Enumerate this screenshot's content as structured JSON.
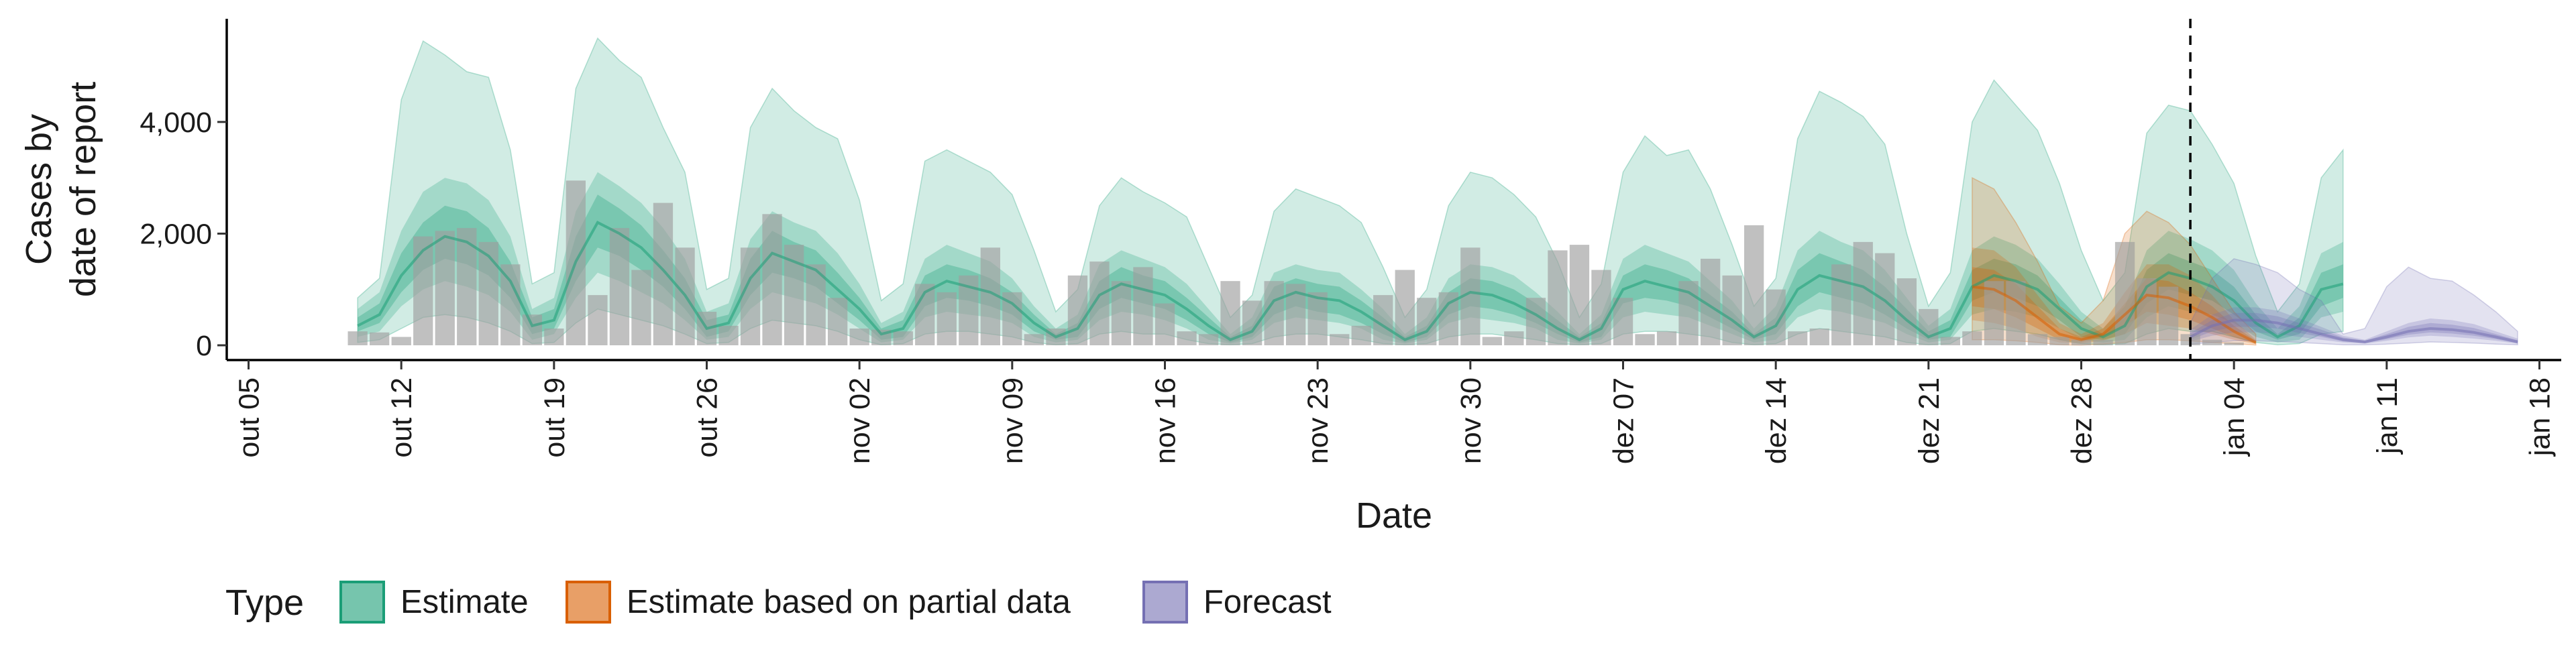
{
  "chart_data": {
    "type": "area",
    "xlabel": "Date",
    "ylabel_lines": [
      "Cases by",
      "date of report"
    ],
    "ylim": [
      0,
      5800
    ],
    "y_ticks": [
      0,
      2000,
      4000
    ],
    "y_tick_labels": [
      "0",
      "2,000",
      "4,000"
    ],
    "x_range": [
      "2020-10-04",
      "2021-01-19"
    ],
    "x_ticks": [
      "2020-10-05",
      "2020-10-12",
      "2020-10-19",
      "2020-10-26",
      "2020-11-02",
      "2020-11-09",
      "2020-11-16",
      "2020-11-23",
      "2020-11-30",
      "2020-12-07",
      "2020-12-14",
      "2020-12-21",
      "2020-12-28",
      "2021-01-04",
      "2021-01-11",
      "2021-01-18"
    ],
    "x_tick_labels": [
      "out 05",
      "out 12",
      "out 19",
      "out 26",
      "nov 02",
      "nov 09",
      "nov 16",
      "nov 23",
      "nov 30",
      "dez 07",
      "dez 14",
      "dez 21",
      "dez 28",
      "jan 04",
      "jan 11",
      "jan 18"
    ],
    "forecast_date": "2021-01-02",
    "legend": {
      "title": "Type",
      "position": "bottom",
      "items": [
        {
          "label": "Estimate",
          "color": "#1b9e77"
        },
        {
          "label": "Estimate based on partial data",
          "color": "#d95f02"
        },
        {
          "label": "Forecast",
          "color": "#7570b3"
        }
      ]
    },
    "reported_cases": {
      "start_date": "2020-10-10",
      "values": [
        250,
        230,
        150,
        1950,
        2050,
        2100,
        1850,
        1450,
        550,
        300,
        2950,
        900,
        2100,
        1350,
        2550,
        1750,
        600,
        350,
        1750,
        2350,
        1800,
        1450,
        850,
        300,
        280,
        250,
        1100,
        950,
        1250,
        1750,
        950,
        200,
        300,
        1250,
        1500,
        1150,
        1400,
        750,
        250,
        200,
        1150,
        800,
        1150,
        1100,
        950,
        200,
        350,
        900,
        1350,
        850,
        950,
        1750,
        150,
        250,
        850,
        1700,
        1800,
        1350,
        850,
        200,
        250,
        1150,
        1550,
        1250,
        2150,
        1000,
        250,
        300,
        1450,
        1850,
        1650,
        1200,
        650,
        150,
        250,
        1150,
        1150,
        200,
        150,
        100,
        100,
        1850,
        1200,
        1050,
        200,
        100,
        50
      ],
      "color": "#9e9e9e"
    },
    "series": [
      {
        "name": "Estimate",
        "color": "#1b9e77",
        "start_date": "2020-10-10",
        "median": [
          350,
          550,
          1250,
          1700,
          1950,
          1850,
          1600,
          1150,
          350,
          450,
          1500,
          2200,
          2000,
          1750,
          1350,
          900,
          300,
          400,
          1200,
          1650,
          1500,
          1350,
          1000,
          650,
          200,
          300,
          950,
          1150,
          1050,
          950,
          750,
          400,
          150,
          300,
          900,
          1100,
          1000,
          900,
          650,
          350,
          100,
          250,
          800,
          950,
          850,
          800,
          600,
          350,
          100,
          250,
          750,
          950,
          900,
          750,
          550,
          300,
          100,
          300,
          1000,
          1150,
          1050,
          950,
          700,
          450,
          150,
          350,
          1000,
          1250,
          1150,
          1050,
          800,
          450,
          150,
          300,
          1050,
          1250,
          1150,
          1000,
          650,
          300,
          150,
          350,
          1050,
          1300,
          1200,
          1050,
          800,
          400,
          150,
          350,
          1000,
          1100
        ],
        "inner_lower": [
          250,
          400,
          950,
          1350,
          1550,
          1450,
          1250,
          850,
          200,
          300,
          1150,
          1750,
          1600,
          1350,
          1050,
          650,
          150,
          250,
          900,
          1300,
          1200,
          1050,
          750,
          450,
          100,
          150,
          700,
          850,
          800,
          700,
          550,
          250,
          100,
          150,
          650,
          850,
          750,
          650,
          450,
          200,
          50,
          150,
          550,
          700,
          600,
          550,
          400,
          200,
          50,
          150,
          550,
          700,
          650,
          550,
          400,
          200,
          50,
          150,
          750,
          850,
          800,
          700,
          500,
          300,
          100,
          200,
          700,
          950,
          850,
          750,
          550,
          300,
          100,
          150,
          800,
          950,
          850,
          700,
          450,
          150,
          100,
          200,
          750,
          1000,
          900,
          800,
          550,
          250,
          100,
          200,
          700,
          850
        ],
        "inner_upper": [
          500,
          750,
          1650,
          2200,
          2500,
          2400,
          2100,
          1500,
          500,
          650,
          1950,
          2700,
          2450,
          2150,
          1700,
          1200,
          450,
          550,
          1550,
          2050,
          1850,
          1700,
          1300,
          850,
          300,
          450,
          1250,
          1450,
          1350,
          1200,
          950,
          550,
          200,
          400,
          1150,
          1400,
          1250,
          1150,
          850,
          500,
          150,
          350,
          1050,
          1200,
          1100,
          1050,
          800,
          500,
          150,
          350,
          950,
          1200,
          1150,
          1000,
          750,
          450,
          150,
          400,
          1250,
          1450,
          1350,
          1200,
          900,
          600,
          200,
          500,
          1350,
          1650,
          1500,
          1350,
          1050,
          650,
          250,
          450,
          1350,
          1550,
          1450,
          1250,
          850,
          450,
          200,
          500,
          1350,
          1650,
          1500,
          1350,
          1050,
          550,
          200,
          500,
          1300,
          1450
        ],
        "mid_lower": [
          150,
          250,
          700,
          1000,
          1150,
          1050,
          900,
          600,
          100,
          200,
          850,
          1300,
          1150,
          950,
          750,
          450,
          100,
          150,
          650,
          950,
          850,
          750,
          550,
          300,
          50,
          100,
          500,
          600,
          550,
          500,
          400,
          150,
          50,
          100,
          450,
          600,
          550,
          450,
          300,
          100,
          30,
          100,
          400,
          500,
          450,
          400,
          300,
          100,
          30,
          100,
          400,
          500,
          450,
          400,
          300,
          100,
          30,
          100,
          500,
          600,
          550,
          500,
          350,
          200,
          50,
          100,
          500,
          650,
          600,
          500,
          400,
          200,
          50,
          100,
          550,
          650,
          600,
          500,
          300,
          100,
          50,
          100,
          500,
          700,
          600,
          550,
          400,
          150,
          50,
          100,
          500,
          600
        ],
        "mid_upper": [
          650,
          950,
          2050,
          2750,
          3000,
          2900,
          2600,
          1950,
          650,
          850,
          2400,
          3100,
          2850,
          2550,
          2100,
          1550,
          600,
          750,
          1900,
          2400,
          2200,
          2050,
          1650,
          1100,
          400,
          600,
          1550,
          1800,
          1650,
          1500,
          1200,
          700,
          300,
          550,
          1450,
          1700,
          1550,
          1400,
          1100,
          650,
          200,
          500,
          1300,
          1450,
          1350,
          1300,
          1000,
          650,
          200,
          500,
          1200,
          1450,
          1400,
          1250,
          950,
          600,
          200,
          550,
          1550,
          1800,
          1650,
          1500,
          1150,
          800,
          300,
          700,
          1700,
          2050,
          1850,
          1700,
          1350,
          850,
          350,
          650,
          1700,
          1950,
          1800,
          1550,
          1100,
          600,
          300,
          700,
          1700,
          2050,
          1900,
          1700,
          1350,
          750,
          300,
          700,
          1650,
          1850
        ],
        "outer_lower": [
          50,
          100,
          300,
          500,
          550,
          500,
          400,
          250,
          30,
          50,
          400,
          650,
          550,
          450,
          350,
          200,
          30,
          50,
          300,
          450,
          400,
          350,
          250,
          100,
          10,
          30,
          200,
          250,
          250,
          200,
          150,
          50,
          10,
          30,
          200,
          250,
          200,
          200,
          100,
          30,
          10,
          30,
          150,
          200,
          200,
          150,
          100,
          30,
          10,
          30,
          150,
          200,
          200,
          150,
          100,
          30,
          10,
          30,
          200,
          250,
          250,
          200,
          150,
          50,
          10,
          30,
          200,
          300,
          250,
          200,
          150,
          50,
          10,
          30,
          250,
          300,
          250,
          200,
          100,
          30,
          10,
          30,
          200,
          300,
          250,
          250,
          150,
          50,
          10,
          30,
          200,
          250
        ],
        "outer_upper": [
          850,
          1200,
          4400,
          5450,
          5200,
          4900,
          4800,
          3500,
          1100,
          1300,
          4600,
          5500,
          5100,
          4800,
          3900,
          3100,
          1000,
          1200,
          3900,
          4600,
          4200,
          3900,
          3700,
          2600,
          800,
          1100,
          3300,
          3500,
          3300,
          3100,
          2700,
          1700,
          600,
          1000,
          2500,
          3000,
          2750,
          2550,
          2300,
          1400,
          500,
          900,
          2400,
          2800,
          2650,
          2500,
          2200,
          1400,
          500,
          1000,
          2500,
          3100,
          3000,
          2700,
          2300,
          1500,
          500,
          1100,
          3100,
          3750,
          3400,
          3500,
          2800,
          1800,
          700,
          1200,
          3700,
          4550,
          4350,
          4100,
          3600,
          2000,
          700,
          1300,
          4000,
          4750,
          4300,
          3850,
          2900,
          1700,
          800,
          1300,
          3800,
          4300,
          4200,
          3600,
          2900,
          1600,
          600,
          1100,
          3000,
          3500
        ]
      },
      {
        "name": "Estimate based on partial data",
        "color": "#d95f02",
        "start_date": "2020-12-23",
        "median": [
          1050,
          1000,
          800,
          500,
          200,
          100,
          200,
          550,
          900,
          850,
          700,
          500,
          250,
          50
        ],
        "inner_lower": [
          700,
          650,
          500,
          300,
          100,
          50,
          150,
          350,
          600,
          550,
          450,
          300,
          150,
          30
        ],
        "inner_upper": [
          1400,
          1350,
          1100,
          700,
          300,
          150,
          300,
          750,
          1200,
          1150,
          950,
          700,
          350,
          80
        ],
        "mid_lower": [
          450,
          400,
          300,
          150,
          50,
          30,
          80,
          200,
          400,
          350,
          300,
          200,
          100,
          20
        ],
        "mid_upper": [
          1750,
          1700,
          1400,
          900,
          400,
          200,
          400,
          950,
          1450,
          1450,
          1250,
          900,
          450,
          100
        ],
        "outer_lower": [
          100,
          100,
          80,
          50,
          10,
          5,
          20,
          50,
          100,
          100,
          80,
          50,
          30,
          5
        ],
        "outer_upper": [
          3000,
          2800,
          2200,
          1500,
          700,
          400,
          800,
          2000,
          2400,
          2200,
          1800,
          1200,
          600,
          200
        ]
      },
      {
        "name": "Forecast",
        "color": "#7570b3",
        "start_date": "2021-01-02",
        "median": [
          150,
          350,
          450,
          450,
          400,
          300,
          200,
          100,
          60,
          150,
          250,
          300,
          280,
          230,
          150,
          60
        ],
        "inner_lower": [
          100,
          250,
          330,
          330,
          300,
          220,
          150,
          70,
          40,
          110,
          190,
          230,
          210,
          170,
          110,
          40
        ],
        "inner_upper": [
          220,
          450,
          580,
          580,
          520,
          400,
          280,
          140,
          80,
          200,
          330,
          400,
          370,
          310,
          200,
          90
        ],
        "mid_lower": [
          70,
          170,
          230,
          230,
          200,
          150,
          100,
          50,
          30,
          80,
          140,
          170,
          150,
          120,
          80,
          30
        ],
        "mid_upper": [
          280,
          550,
          680,
          680,
          620,
          480,
          330,
          170,
          100,
          250,
          400,
          480,
          450,
          380,
          250,
          120
        ],
        "outer_lower": [
          20,
          50,
          80,
          80,
          70,
          50,
          30,
          10,
          10,
          20,
          40,
          60,
          50,
          40,
          20,
          10
        ],
        "outer_upper": [
          400,
          1200,
          1550,
          1450,
          1300,
          1000,
          800,
          200,
          300,
          1050,
          1400,
          1200,
          1150,
          900,
          600,
          250
        ]
      }
    ]
  }
}
